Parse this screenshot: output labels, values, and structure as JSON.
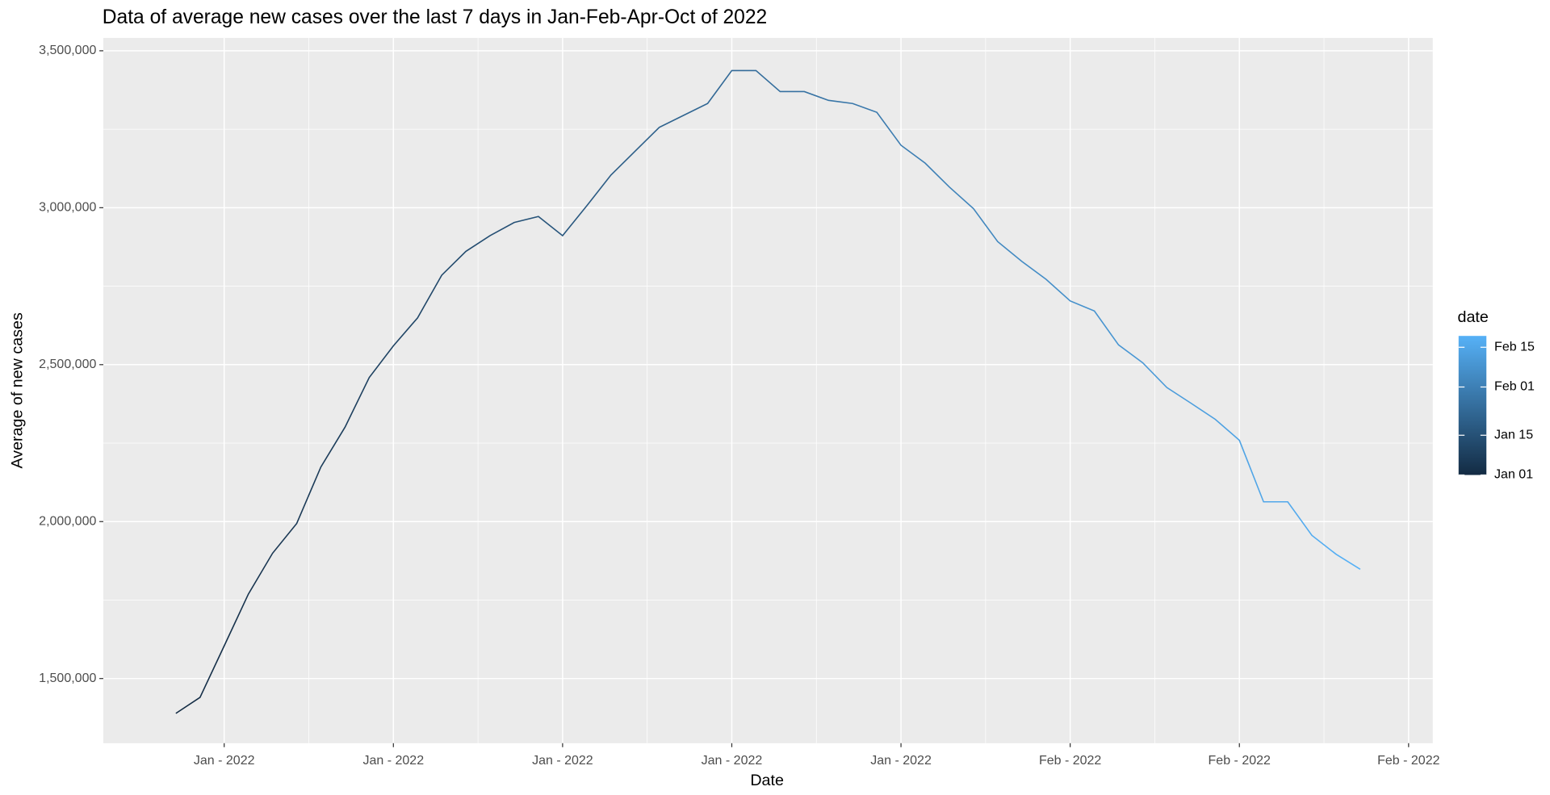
{
  "chart_data": {
    "type": "line",
    "title": "Data of average new cases over the last 7 days in Jan-Feb-Apr-Oct of 2022",
    "x_label": "Date",
    "y_label": "Average of new cases",
    "x": [
      "2022-01-01",
      "2022-01-02",
      "2022-01-03",
      "2022-01-04",
      "2022-01-05",
      "2022-01-06",
      "2022-01-07",
      "2022-01-08",
      "2022-01-09",
      "2022-01-10",
      "2022-01-11",
      "2022-01-12",
      "2022-01-13",
      "2022-01-14",
      "2022-01-15",
      "2022-01-16",
      "2022-01-17",
      "2022-01-18",
      "2022-01-19",
      "2022-01-20",
      "2022-01-21",
      "2022-01-22",
      "2022-01-23",
      "2022-01-24",
      "2022-01-25",
      "2022-01-26",
      "2022-01-27",
      "2022-01-28",
      "2022-01-29",
      "2022-01-30",
      "2022-01-31",
      "2022-02-01",
      "2022-02-02",
      "2022-02-03",
      "2022-02-04",
      "2022-02-05",
      "2022-02-06",
      "2022-02-07",
      "2022-02-08",
      "2022-02-09",
      "2022-02-10",
      "2022-02-11",
      "2022-02-12",
      "2022-02-13",
      "2022-02-14",
      "2022-02-15",
      "2022-02-16",
      "2022-02-17",
      "2022-02-18",
      "2022-02-19"
    ],
    "series": [
      {
        "name": "date",
        "values": [
          1389000,
          1440000,
          1604000,
          1769000,
          1899000,
          1994000,
          2174000,
          2301000,
          2459000,
          2560000,
          2649000,
          2785000,
          2861000,
          2911000,
          2953000,
          2972000,
          2911000,
          3006000,
          3104000,
          3180000,
          3256000,
          3294000,
          3332000,
          3437000,
          3437000,
          3370000,
          3370000,
          3342000,
          3332000,
          3304000,
          3199000,
          3142000,
          3066000,
          2997000,
          2892000,
          2829000,
          2772000,
          2703000,
          2671000,
          2563000,
          2506000,
          2427000,
          2377000,
          2326000,
          2259000,
          2063000,
          2063000,
          1956000,
          1896000,
          1848000
        ]
      }
    ],
    "color_low": "#132B43",
    "color_high": "#56B1F7",
    "xlim": [
      "2021-12-29",
      "2022-02-22"
    ],
    "xticks": [
      {
        "value": "2022-01-03",
        "label": "Jan - 2022"
      },
      {
        "value": "2022-01-10",
        "label": "Jan - 2022"
      },
      {
        "value": "2022-01-17",
        "label": "Jan - 2022"
      },
      {
        "value": "2022-01-24",
        "label": "Jan - 2022"
      },
      {
        "value": "2022-01-31",
        "label": "Jan - 2022"
      },
      {
        "value": "2022-02-07",
        "label": "Feb - 2022"
      },
      {
        "value": "2022-02-14",
        "label": "Feb - 2022"
      },
      {
        "value": "2022-02-21",
        "label": "Feb - 2022"
      }
    ],
    "ylim": [
      1294000,
      3541000
    ],
    "yticks": [
      {
        "value": 1500000,
        "label": "1,500,000"
      },
      {
        "value": 2000000,
        "label": "2,000,000"
      },
      {
        "value": 2500000,
        "label": "2,500,000"
      },
      {
        "value": 3000000,
        "label": "3,000,000"
      },
      {
        "value": 3500000,
        "label": "3,500,000"
      }
    ],
    "legend_ticks": [
      {
        "value": "2022-01-01",
        "label": "Jan 01"
      },
      {
        "value": "2022-01-15",
        "label": "Jan 15"
      },
      {
        "value": "2022-02-01",
        "label": "Feb 01"
      },
      {
        "value": "2022-02-15",
        "label": "Feb 15"
      }
    ],
    "grid": true,
    "legend": "right"
  }
}
